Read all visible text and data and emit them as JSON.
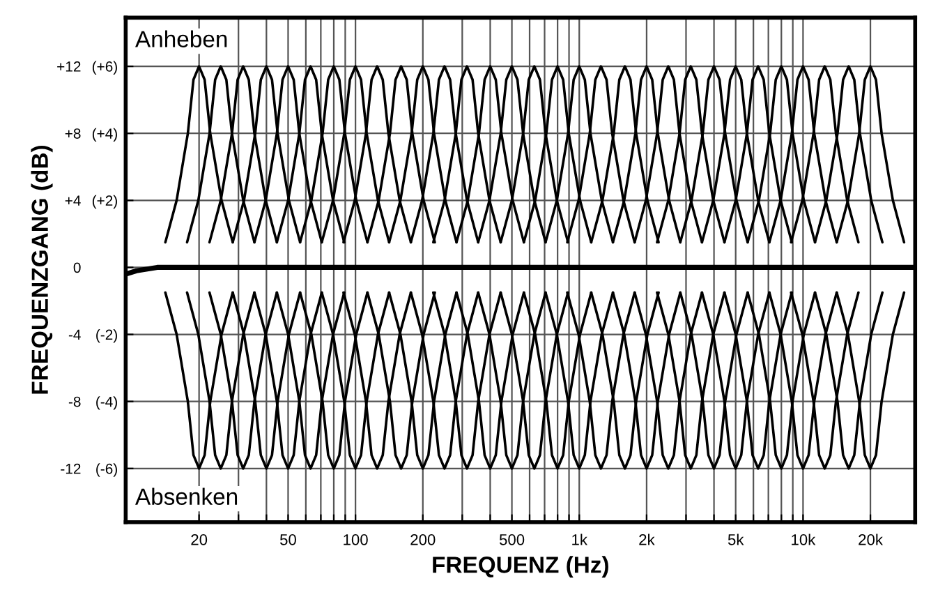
{
  "chart_data": {
    "type": "line",
    "xlabel": "FREQUENZ (Hz)",
    "ylabel": "FREQUENZGANG (dB)",
    "log": "x",
    "grid": true,
    "annotations": [
      "Anheben",
      "Absenken"
    ],
    "xlim": [
      9.4,
      31700
    ],
    "ylim": [
      -15.2,
      14.9
    ],
    "xticks": [
      20,
      {
        "value": 30,
        "label": null
      },
      {
        "value": 40,
        "label": null
      },
      50,
      {
        "value": 60,
        "label": null
      },
      {
        "value": 70,
        "label": null
      },
      {
        "value": 80,
        "label": null
      },
      {
        "value": 90,
        "label": null
      },
      100,
      200,
      {
        "value": 300,
        "label": null
      },
      {
        "value": 400,
        "label": null
      },
      500,
      {
        "value": 600,
        "label": null
      },
      {
        "value": 700,
        "label": null
      },
      {
        "value": 800,
        "label": null
      },
      {
        "value": 900,
        "label": null
      },
      {
        "value": 1000,
        "label": "1k"
      },
      {
        "value": 2000,
        "label": "2k"
      },
      {
        "value": 3000,
        "label": null
      },
      {
        "value": 4000,
        "label": null
      },
      {
        "value": 5000,
        "label": "5k"
      },
      {
        "value": 6000,
        "label": null
      },
      {
        "value": 7000,
        "label": null
      },
      {
        "value": 8000,
        "label": null
      },
      {
        "value": 9000,
        "label": null
      },
      {
        "value": 10000,
        "label": "10k"
      },
      {
        "value": 20000,
        "label": "20k"
      }
    ],
    "yticks": [
      {
        "value": 12,
        "label": "+12"
      },
      {
        "value": 8,
        "label": "+8"
      },
      {
        "value": 4,
        "label": "+4"
      },
      0,
      -4,
      -8,
      -12
    ],
    "y2lim": [
      -7.6,
      7.45
    ],
    "y2ticks": [
      {
        "value": 6,
        "label": "(+6)"
      },
      {
        "value": 4,
        "label": "(+4)"
      },
      {
        "value": 2,
        "label": "(+2)"
      },
      {
        "value": -2,
        "label": "(-2)"
      },
      {
        "value": -4,
        "label": "(-4)"
      },
      {
        "value": -6,
        "label": "(-6)"
      }
    ],
    "series": [
      {
        "color": "#000000",
        "x": [
          9.4,
          10.5,
          13,
          31700
        ],
        "values": [
          -0.4,
          -0.2,
          0,
          0
        ]
      },
      {
        "color": "#000000",
        "x": [
          14.14,
          15.88,
          17.82,
          18.88,
          20,
          21.18,
          22.44,
          25.2,
          28.28
        ],
        "values": [
          1.5,
          4,
          8,
          11.2,
          12,
          11.2,
          8,
          4,
          1.5
        ]
      },
      {
        "color": "#000000",
        "x": [
          17.68,
          19.85,
          22.28,
          23.6,
          25,
          26.48,
          28.05,
          31.5,
          35.35
        ],
        "values": [
          1.5,
          4,
          8,
          11.2,
          12,
          11.2,
          8,
          4,
          1.5
        ]
      },
      {
        "color": "#000000",
        "x": [
          22.27,
          25.01,
          28.07,
          29.74,
          31.5,
          33.36,
          35.34,
          39.69,
          44.54
        ],
        "values": [
          1.5,
          4,
          8,
          11.2,
          12,
          11.2,
          8,
          4,
          1.5
        ]
      },
      {
        "color": "#000000",
        "x": [
          28.28,
          31.76,
          35.64,
          37.76,
          40,
          42.36,
          44.88,
          50.4,
          56.56
        ],
        "values": [
          1.5,
          4,
          8,
          11.2,
          12,
          11.2,
          8,
          4,
          1.5
        ]
      },
      {
        "color": "#000000",
        "x": [
          35.35,
          39.7,
          44.55,
          47.2,
          50,
          52.95,
          56.1,
          63,
          70.7
        ],
        "values": [
          1.5,
          4,
          8,
          11.2,
          12,
          11.2,
          8,
          4,
          1.5
        ]
      },
      {
        "color": "#000000",
        "x": [
          44.54,
          50.02,
          56.13,
          59.47,
          63,
          66.72,
          70.69,
          79.38,
          89.08
        ],
        "values": [
          1.5,
          4,
          8,
          11.2,
          12,
          11.2,
          8,
          4,
          1.5
        ]
      },
      {
        "color": "#000000",
        "x": [
          56.56,
          63.52,
          71.28,
          75.52,
          80,
          84.72,
          89.76,
          100.8,
          113.1
        ],
        "values": [
          1.5,
          4,
          8,
          11.2,
          12,
          11.2,
          8,
          4,
          1.5
        ]
      },
      {
        "color": "#000000",
        "x": [
          70.7,
          79.4,
          89.1,
          94.4,
          100,
          105.9,
          112.2,
          126,
          141.4
        ],
        "values": [
          1.5,
          4,
          8,
          11.2,
          12,
          11.2,
          8,
          4,
          1.5
        ]
      },
      {
        "color": "#000000",
        "x": [
          88.4,
          99.3,
          111.4,
          118,
          125,
          132.4,
          140.3,
          157.5,
          176.8
        ],
        "values": [
          1.5,
          4,
          8,
          11.2,
          12,
          11.2,
          8,
          4,
          1.5
        ]
      },
      {
        "color": "#000000",
        "x": [
          113.1,
          127,
          142.6,
          151,
          160,
          169.4,
          179.5,
          201.6,
          226.2
        ],
        "values": [
          1.5,
          4,
          8,
          11.2,
          12,
          11.2,
          8,
          4,
          1.5
        ]
      },
      {
        "color": "#000000",
        "x": [
          141.4,
          158.8,
          178.2,
          188.8,
          200,
          211.8,
          224.4,
          252,
          282.8
        ],
        "values": [
          1.5,
          4,
          8,
          11.2,
          12,
          11.2,
          8,
          4,
          1.5
        ]
      },
      {
        "color": "#000000",
        "x": [
          176.8,
          198.5,
          222.8,
          236,
          250,
          264.8,
          280.5,
          315,
          353.5
        ],
        "values": [
          1.5,
          4,
          8,
          11.2,
          12,
          11.2,
          8,
          4,
          1.5
        ]
      },
      {
        "color": "#000000",
        "x": [
          222.7,
          250.1,
          280.7,
          297.4,
          315,
          333.6,
          353.4,
          396.9,
          445.4
        ],
        "values": [
          1.5,
          4,
          8,
          11.2,
          12,
          11.2,
          8,
          4,
          1.5
        ]
      },
      {
        "color": "#000000",
        "x": [
          282.8,
          317.6,
          356.4,
          377.6,
          400,
          423.6,
          448.8,
          504,
          565.6
        ],
        "values": [
          1.5,
          4,
          8,
          11.2,
          12,
          11.2,
          8,
          4,
          1.5
        ]
      },
      {
        "color": "#000000",
        "x": [
          353.5,
          397,
          445.5,
          472,
          500,
          529.5,
          561,
          630,
          707
        ],
        "values": [
          1.5,
          4,
          8,
          11.2,
          12,
          11.2,
          8,
          4,
          1.5
        ]
      },
      {
        "color": "#000000",
        "x": [
          445.4,
          500.2,
          561.3,
          594.7,
          630,
          667.2,
          706.9,
          793.8,
          890.8
        ],
        "values": [
          1.5,
          4,
          8,
          11.2,
          12,
          11.2,
          8,
          4,
          1.5
        ]
      },
      {
        "color": "#000000",
        "x": [
          565.6,
          635.2,
          712.8,
          755.2,
          800,
          847.2,
          897.6,
          1008,
          1131
        ],
        "values": [
          1.5,
          4,
          8,
          11.2,
          12,
          11.2,
          8,
          4,
          1.5
        ]
      },
      {
        "color": "#000000",
        "x": [
          707,
          794,
          891,
          944,
          1000,
          1059,
          1122,
          1260,
          1414
        ],
        "values": [
          1.5,
          4,
          8,
          11.2,
          12,
          11.2,
          8,
          4,
          1.5
        ]
      },
      {
        "color": "#000000",
        "x": [
          884,
          993,
          1114,
          1180,
          1250,
          1324,
          1403,
          1575,
          1768
        ],
        "values": [
          1.5,
          4,
          8,
          11.2,
          12,
          11.2,
          8,
          4,
          1.5
        ]
      },
      {
        "color": "#000000",
        "x": [
          1131,
          1270,
          1426,
          1510,
          1600,
          1694,
          1795,
          2016,
          2262
        ],
        "values": [
          1.5,
          4,
          8,
          11.2,
          12,
          11.2,
          8,
          4,
          1.5
        ]
      },
      {
        "color": "#000000",
        "x": [
          1414,
          1588,
          1782,
          1888,
          2000,
          2118,
          2244,
          2520,
          2828
        ],
        "values": [
          1.5,
          4,
          8,
          11.2,
          12,
          11.2,
          8,
          4,
          1.5
        ]
      },
      {
        "color": "#000000",
        "x": [
          1768,
          1985,
          2228,
          2360,
          2500,
          2648,
          2805,
          3150,
          3535
        ],
        "values": [
          1.5,
          4,
          8,
          11.2,
          12,
          11.2,
          8,
          4,
          1.5
        ]
      },
      {
        "color": "#000000",
        "x": [
          2227,
          2501,
          2807,
          2974,
          3150,
          3336,
          3534,
          3969,
          4454
        ],
        "values": [
          1.5,
          4,
          8,
          11.2,
          12,
          11.2,
          8,
          4,
          1.5
        ]
      },
      {
        "color": "#000000",
        "x": [
          2828,
          3176,
          3564,
          3776,
          4000,
          4236,
          4488,
          5040,
          5656
        ],
        "values": [
          1.5,
          4,
          8,
          11.2,
          12,
          11.2,
          8,
          4,
          1.5
        ]
      },
      {
        "color": "#000000",
        "x": [
          3535,
          3970,
          4455,
          4720,
          5000,
          5295,
          5610,
          6300,
          7070
        ],
        "values": [
          1.5,
          4,
          8,
          11.2,
          12,
          11.2,
          8,
          4,
          1.5
        ]
      },
      {
        "color": "#000000",
        "x": [
          4454,
          5002,
          5613,
          5947,
          6300,
          6672,
          7069,
          7938,
          8908
        ],
        "values": [
          1.5,
          4,
          8,
          11.2,
          12,
          11.2,
          8,
          4,
          1.5
        ]
      },
      {
        "color": "#000000",
        "x": [
          5656,
          6352,
          7128,
          7552,
          8000,
          8472,
          8976,
          10080,
          11310
        ],
        "values": [
          1.5,
          4,
          8,
          11.2,
          12,
          11.2,
          8,
          4,
          1.5
        ]
      },
      {
        "color": "#000000",
        "x": [
          7070,
          7940,
          8910,
          9440,
          10000,
          10590,
          11220,
          12600,
          14140
        ],
        "values": [
          1.5,
          4,
          8,
          11.2,
          12,
          11.2,
          8,
          4,
          1.5
        ]
      },
      {
        "color": "#000000",
        "x": [
          8840,
          9930,
          11140,
          11800,
          12500,
          13240,
          14030,
          15750,
          17680
        ],
        "values": [
          1.5,
          4,
          8,
          11.2,
          12,
          11.2,
          8,
          4,
          1.5
        ]
      },
      {
        "color": "#000000",
        "x": [
          11310,
          12700,
          14260,
          15100,
          16000,
          16940,
          17950,
          20160,
          22620
        ],
        "values": [
          1.5,
          4,
          8,
          11.2,
          12,
          11.2,
          8,
          4,
          1.5
        ]
      },
      {
        "color": "#000000",
        "x": [
          14140,
          15880,
          17820,
          18880,
          20000,
          21180,
          22440,
          25200,
          28280
        ],
        "values": [
          1.5,
          4,
          8,
          11.2,
          12,
          11.2,
          8,
          4,
          1.5
        ]
      },
      {
        "color": "#000000",
        "x": [
          14.14,
          15.88,
          17.82,
          18.88,
          20,
          21.18,
          22.44,
          25.2,
          28.28
        ],
        "values": [
          -1.5,
          -4,
          -8,
          -11.2,
          -12,
          -11.2,
          -8,
          -4,
          -1.5
        ]
      },
      {
        "color": "#000000",
        "x": [
          17.68,
          19.85,
          22.28,
          23.6,
          25,
          26.48,
          28.05,
          31.5,
          35.35
        ],
        "values": [
          -1.5,
          -4,
          -8,
          -11.2,
          -12,
          -11.2,
          -8,
          -4,
          -1.5
        ]
      },
      {
        "color": "#000000",
        "x": [
          22.27,
          25.01,
          28.07,
          29.74,
          31.5,
          33.36,
          35.34,
          39.69,
          44.54
        ],
        "values": [
          -1.5,
          -4,
          -8,
          -11.2,
          -12,
          -11.2,
          -8,
          -4,
          -1.5
        ]
      },
      {
        "color": "#000000",
        "x": [
          28.28,
          31.76,
          35.64,
          37.76,
          40,
          42.36,
          44.88,
          50.4,
          56.56
        ],
        "values": [
          -1.5,
          -4,
          -8,
          -11.2,
          -12,
          -11.2,
          -8,
          -4,
          -1.5
        ]
      },
      {
        "color": "#000000",
        "x": [
          35.35,
          39.7,
          44.55,
          47.2,
          50,
          52.95,
          56.1,
          63,
          70.7
        ],
        "values": [
          -1.5,
          -4,
          -8,
          -11.2,
          -12,
          -11.2,
          -8,
          -4,
          -1.5
        ]
      },
      {
        "color": "#000000",
        "x": [
          44.54,
          50.02,
          56.13,
          59.47,
          63,
          66.72,
          70.69,
          79.38,
          89.08
        ],
        "values": [
          -1.5,
          -4,
          -8,
          -11.2,
          -12,
          -11.2,
          -8,
          -4,
          -1.5
        ]
      },
      {
        "color": "#000000",
        "x": [
          56.56,
          63.52,
          71.28,
          75.52,
          80,
          84.72,
          89.76,
          100.8,
          113.1
        ],
        "values": [
          -1.5,
          -4,
          -8,
          -11.2,
          -12,
          -11.2,
          -8,
          -4,
          -1.5
        ]
      },
      {
        "color": "#000000",
        "x": [
          70.7,
          79.4,
          89.1,
          94.4,
          100,
          105.9,
          112.2,
          126,
          141.4
        ],
        "values": [
          -1.5,
          -4,
          -8,
          -11.2,
          -12,
          -11.2,
          -8,
          -4,
          -1.5
        ]
      },
      {
        "color": "#000000",
        "x": [
          88.4,
          99.3,
          111.4,
          118,
          125,
          132.4,
          140.3,
          157.5,
          176.8
        ],
        "values": [
          -1.5,
          -4,
          -8,
          -11.2,
          -12,
          -11.2,
          -8,
          -4,
          -1.5
        ]
      },
      {
        "color": "#000000",
        "x": [
          113.1,
          127,
          142.6,
          151,
          160,
          169.4,
          179.5,
          201.6,
          226.2
        ],
        "values": [
          -1.5,
          -4,
          -8,
          -11.2,
          -12,
          -11.2,
          -8,
          -4,
          -1.5
        ]
      },
      {
        "color": "#000000",
        "x": [
          141.4,
          158.8,
          178.2,
          188.8,
          200,
          211.8,
          224.4,
          252,
          282.8
        ],
        "values": [
          -1.5,
          -4,
          -8,
          -11.2,
          -12,
          -11.2,
          -8,
          -4,
          -1.5
        ]
      },
      {
        "color": "#000000",
        "x": [
          176.8,
          198.5,
          222.8,
          236,
          250,
          264.8,
          280.5,
          315,
          353.5
        ],
        "values": [
          -1.5,
          -4,
          -8,
          -11.2,
          -12,
          -11.2,
          -8,
          -4,
          -1.5
        ]
      },
      {
        "color": "#000000",
        "x": [
          222.7,
          250.1,
          280.7,
          297.4,
          315,
          333.6,
          353.4,
          396.9,
          445.4
        ],
        "values": [
          -1.5,
          -4,
          -8,
          -11.2,
          -12,
          -11.2,
          -8,
          -4,
          -1.5
        ]
      },
      {
        "color": "#000000",
        "x": [
          282.8,
          317.6,
          356.4,
          377.6,
          400,
          423.6,
          448.8,
          504,
          565.6
        ],
        "values": [
          -1.5,
          -4,
          -8,
          -11.2,
          -12,
          -11.2,
          -8,
          -4,
          -1.5
        ]
      },
      {
        "color": "#000000",
        "x": [
          353.5,
          397,
          445.5,
          472,
          500,
          529.5,
          561,
          630,
          707
        ],
        "values": [
          -1.5,
          -4,
          -8,
          -11.2,
          -12,
          -11.2,
          -8,
          -4,
          -1.5
        ]
      },
      {
        "color": "#000000",
        "x": [
          445.4,
          500.2,
          561.3,
          594.7,
          630,
          667.2,
          706.9,
          793.8,
          890.8
        ],
        "values": [
          -1.5,
          -4,
          -8,
          -11.2,
          -12,
          -11.2,
          -8,
          -4,
          -1.5
        ]
      },
      {
        "color": "#000000",
        "x": [
          565.6,
          635.2,
          712.8,
          755.2,
          800,
          847.2,
          897.6,
          1008,
          1131
        ],
        "values": [
          -1.5,
          -4,
          -8,
          -11.2,
          -12,
          -11.2,
          -8,
          -4,
          -1.5
        ]
      },
      {
        "color": "#000000",
        "x": [
          707,
          794,
          891,
          944,
          1000,
          1059,
          1122,
          1260,
          1414
        ],
        "values": [
          -1.5,
          -4,
          -8,
          -11.2,
          -12,
          -11.2,
          -8,
          -4,
          -1.5
        ]
      },
      {
        "color": "#000000",
        "x": [
          884,
          993,
          1114,
          1180,
          1250,
          1324,
          1403,
          1575,
          1768
        ],
        "values": [
          -1.5,
          -4,
          -8,
          -11.2,
          -12,
          -11.2,
          -8,
          -4,
          -1.5
        ]
      },
      {
        "color": "#000000",
        "x": [
          1131,
          1270,
          1426,
          1510,
          1600,
          1694,
          1795,
          2016,
          2262
        ],
        "values": [
          -1.5,
          -4,
          -8,
          -11.2,
          -12,
          -11.2,
          -8,
          -4,
          -1.5
        ]
      },
      {
        "color": "#000000",
        "x": [
          1414,
          1588,
          1782,
          1888,
          2000,
          2118,
          2244,
          2520,
          2828
        ],
        "values": [
          -1.5,
          -4,
          -8,
          -11.2,
          -12,
          -11.2,
          -8,
          -4,
          -1.5
        ]
      },
      {
        "color": "#000000",
        "x": [
          1768,
          1985,
          2228,
          2360,
          2500,
          2648,
          2805,
          3150,
          3535
        ],
        "values": [
          -1.5,
          -4,
          -8,
          -11.2,
          -12,
          -11.2,
          -8,
          -4,
          -1.5
        ]
      },
      {
        "color": "#000000",
        "x": [
          2227,
          2501,
          2807,
          2974,
          3150,
          3336,
          3534,
          3969,
          4454
        ],
        "values": [
          -1.5,
          -4,
          -8,
          -11.2,
          -12,
          -11.2,
          -8,
          -4,
          -1.5
        ]
      },
      {
        "color": "#000000",
        "x": [
          2828,
          3176,
          3564,
          3776,
          4000,
          4236,
          4488,
          5040,
          5656
        ],
        "values": [
          -1.5,
          -4,
          -8,
          -11.2,
          -12,
          -11.2,
          -8,
          -4,
          -1.5
        ]
      },
      {
        "color": "#000000",
        "x": [
          3535,
          3970,
          4455,
          4720,
          5000,
          5295,
          5610,
          6300,
          7070
        ],
        "values": [
          -1.5,
          -4,
          -8,
          -11.2,
          -12,
          -11.2,
          -8,
          -4,
          -1.5
        ]
      },
      {
        "color": "#000000",
        "x": [
          4454,
          5002,
          5613,
          5947,
          6300,
          6672,
          7069,
          7938,
          8908
        ],
        "values": [
          -1.5,
          -4,
          -8,
          -11.2,
          -12,
          -11.2,
          -8,
          -4,
          -1.5
        ]
      },
      {
        "color": "#000000",
        "x": [
          5656,
          6352,
          7128,
          7552,
          8000,
          8472,
          8976,
          10080,
          11310
        ],
        "values": [
          -1.5,
          -4,
          -8,
          -11.2,
          -12,
          -11.2,
          -8,
          -4,
          -1.5
        ]
      },
      {
        "color": "#000000",
        "x": [
          7070,
          7940,
          8910,
          9440,
          10000,
          10590,
          11220,
          12600,
          14140
        ],
        "values": [
          -1.5,
          -4,
          -8,
          -11.2,
          -12,
          -11.2,
          -8,
          -4,
          -1.5
        ]
      },
      {
        "color": "#000000",
        "x": [
          8840,
          9930,
          11140,
          11800,
          12500,
          13240,
          14030,
          15750,
          17680
        ],
        "values": [
          -1.5,
          -4,
          -8,
          -11.2,
          -12,
          -11.2,
          -8,
          -4,
          -1.5
        ]
      },
      {
        "color": "#000000",
        "x": [
          11310,
          12700,
          14260,
          15100,
          16000,
          16940,
          17950,
          20160,
          22620
        ],
        "values": [
          -1.5,
          -4,
          -8,
          -11.2,
          -12,
          -11.2,
          -8,
          -4,
          -1.5
        ]
      },
      {
        "color": "#000000",
        "x": [
          14140,
          15880,
          17820,
          18880,
          20000,
          21180,
          22440,
          25200,
          28280
        ],
        "values": [
          -1.5,
          -4,
          -8,
          -11.2,
          -12,
          -11.2,
          -8,
          -4,
          -1.5
        ]
      }
    ]
  }
}
